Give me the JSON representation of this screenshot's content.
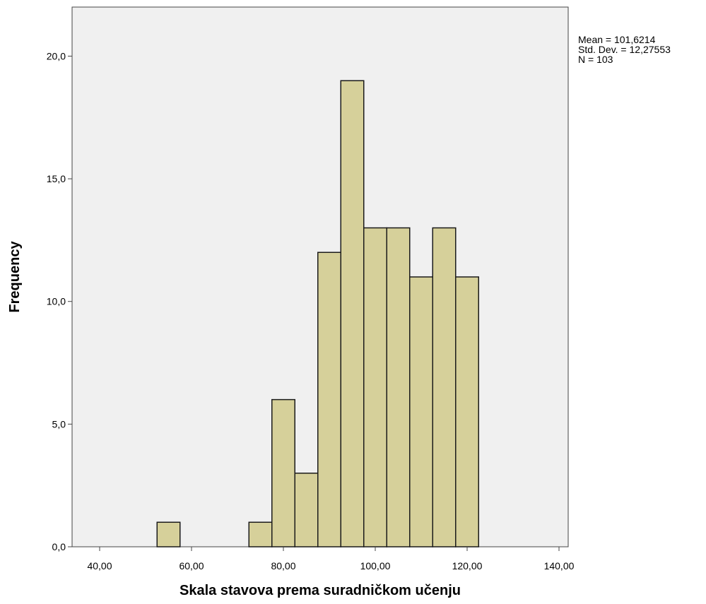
{
  "chart_data": {
    "type": "bar",
    "subtype": "histogram",
    "bins": [
      {
        "x0": 52.5,
        "x1": 57.5,
        "count": 1
      },
      {
        "x0": 57.5,
        "x1": 62.5,
        "count": 0
      },
      {
        "x0": 62.5,
        "x1": 67.5,
        "count": 0
      },
      {
        "x0": 67.5,
        "x1": 72.5,
        "count": 0
      },
      {
        "x0": 72.5,
        "x1": 77.5,
        "count": 1
      },
      {
        "x0": 77.5,
        "x1": 82.5,
        "count": 6
      },
      {
        "x0": 82.5,
        "x1": 87.5,
        "count": 3
      },
      {
        "x0": 87.5,
        "x1": 92.5,
        "count": 12
      },
      {
        "x0": 92.5,
        "x1": 97.5,
        "count": 19
      },
      {
        "x0": 97.5,
        "x1": 102.5,
        "count": 13
      },
      {
        "x0": 102.5,
        "x1": 107.5,
        "count": 13
      },
      {
        "x0": 107.5,
        "x1": 112.5,
        "count": 11
      },
      {
        "x0": 112.5,
        "x1": 117.5,
        "count": 13
      },
      {
        "x0": 117.5,
        "x1": 122.5,
        "count": 11
      }
    ],
    "xlabel": "Skala stavova prema suradničkom učenju",
    "ylabel": "Frequency",
    "xlim": [
      34,
      142
    ],
    "ylim": [
      0,
      22
    ],
    "xticks": [
      40,
      60,
      80,
      100,
      120,
      140
    ],
    "xtick_labels": [
      "40,00",
      "60,00",
      "80,00",
      "100,00",
      "120,00",
      "140,00"
    ],
    "yticks": [
      0,
      5,
      10,
      15,
      20
    ],
    "ytick_labels": [
      "0,0",
      "5,0",
      "10,0",
      "15,0",
      "20,0"
    ],
    "stats": {
      "mean": "Mean = 101,6214",
      "std": "Std. Dev. = 12,27553",
      "n": "N = 103"
    },
    "grid": false,
    "colors": {
      "bar_fill": "#d6d09a",
      "bar_stroke": "#1a1a1a",
      "plot_background": "#f0f0f0",
      "axis": "#444444"
    }
  }
}
